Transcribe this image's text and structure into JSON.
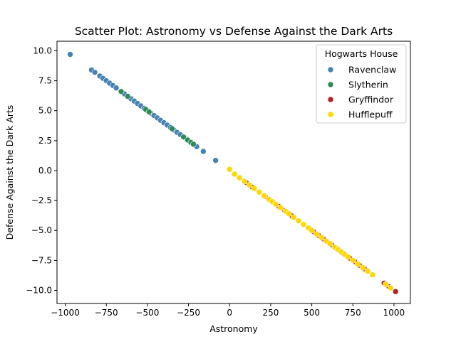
{
  "chart_data": {
    "type": "scatter",
    "title": "Scatter Plot: Astronomy vs Defense Against the Dark Arts",
    "xlabel": "Astronomy",
    "ylabel": "Defense Against the Dark Arts",
    "xlim": [
      -1050,
      1100
    ],
    "ylim": [
      -11.1,
      10.8
    ],
    "xticks": [
      -1000,
      -750,
      -500,
      -250,
      0,
      250,
      500,
      750,
      1000
    ],
    "xtick_labels": [
      "−1000",
      "−750",
      "−500",
      "−250",
      "0",
      "250",
      "500",
      "750",
      "1000"
    ],
    "yticks": [
      -10.0,
      -7.5,
      -5.0,
      -2.5,
      0.0,
      2.5,
      5.0,
      7.5,
      10.0
    ],
    "ytick_labels": [
      "−10.0",
      "−7.5",
      "−5.0",
      "−2.5",
      "0.0",
      "2.5",
      "5.0",
      "7.5",
      "10.0"
    ],
    "grid": false,
    "legend": {
      "title": "Hogwarts House",
      "placement": "top-right"
    },
    "series": [
      {
        "name": "Ravenclaw",
        "color": "#4682b4",
        "x": [
          -970,
          -840,
          -820,
          -790,
          -770,
          -750,
          -730,
          -710,
          -690,
          -660,
          -640,
          -620,
          -600,
          -580,
          -560,
          -540,
          -520,
          -500,
          -480,
          -460,
          -440,
          -420,
          -400,
          -380,
          -360,
          -340,
          -320,
          -300,
          -280,
          -260,
          -240,
          -220,
          -200,
          -160,
          -85,
          370
        ],
        "y": [
          9.7,
          8.4,
          8.2,
          7.9,
          7.7,
          7.5,
          7.3,
          7.1,
          6.9,
          6.6,
          6.4,
          6.2,
          6.0,
          5.8,
          5.6,
          5.4,
          5.2,
          5.0,
          4.8,
          4.6,
          4.4,
          4.2,
          4.0,
          3.8,
          3.6,
          3.4,
          3.2,
          3.0,
          2.8,
          2.6,
          2.4,
          2.2,
          2.0,
          1.6,
          0.85,
          -3.7
        ]
      },
      {
        "name": "Slytherin",
        "color": "#2e8b57",
        "x": [
          -660,
          -620,
          -510,
          -490,
          -350,
          -280,
          -255,
          -235,
          -220
        ],
        "y": [
          6.6,
          6.2,
          5.1,
          4.9,
          3.5,
          2.8,
          2.55,
          2.35,
          2.2
        ]
      },
      {
        "name": "Gryffindor",
        "color": "#b22222",
        "x": [
          100,
          140,
          215,
          300,
          335,
          380,
          420,
          510,
          540,
          570,
          620,
          650,
          690,
          720,
          730,
          760,
          790,
          820,
          940,
          970,
          1010
        ],
        "y": [
          -1.0,
          -1.4,
          -2.15,
          -3.0,
          -3.35,
          -3.8,
          -4.2,
          -5.1,
          -5.4,
          -5.7,
          -6.2,
          -6.5,
          -6.9,
          -7.2,
          -7.3,
          -7.6,
          -7.9,
          -8.2,
          -9.4,
          -9.7,
          -10.1
        ]
      },
      {
        "name": "Hufflepuff",
        "color": "#ffd700",
        "x": [
          0,
          30,
          60,
          90,
          120,
          150,
          180,
          210,
          240,
          260,
          280,
          310,
          340,
          360,
          390,
          420,
          450,
          480,
          500,
          530,
          560,
          590,
          610,
          640,
          660,
          680,
          700,
          720,
          750,
          780,
          810,
          840,
          870,
          950,
          980
        ],
        "y": [
          0.1,
          -0.3,
          -0.6,
          -0.9,
          -1.2,
          -1.5,
          -1.8,
          -2.1,
          -2.4,
          -2.6,
          -2.8,
          -3.1,
          -3.4,
          -3.6,
          -3.9,
          -4.2,
          -4.5,
          -4.8,
          -5.0,
          -5.3,
          -5.6,
          -5.9,
          -6.1,
          -6.4,
          -6.6,
          -6.8,
          -7.0,
          -7.2,
          -7.5,
          -7.8,
          -8.1,
          -8.4,
          -8.7,
          -9.5,
          -9.8
        ]
      }
    ]
  }
}
